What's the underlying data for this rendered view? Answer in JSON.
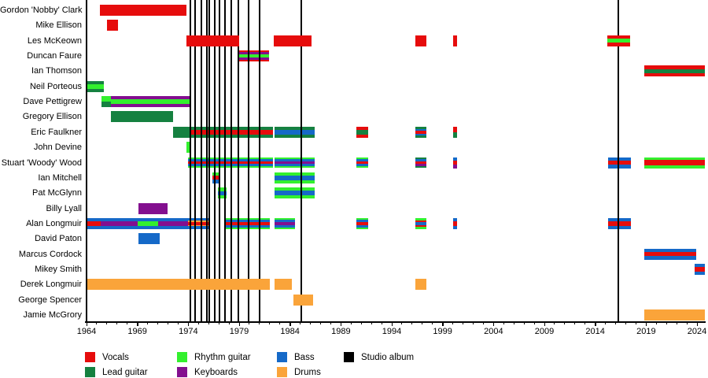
{
  "chart_data": {
    "type": "timeline",
    "title": "",
    "x_axis": {
      "start_year": 1964,
      "end_year": 2024,
      "major_tick_interval": 5,
      "minor_tick_interval": 1,
      "tick_labels": [
        "1964",
        "1969",
        "1974",
        "1979",
        "1984",
        "1989",
        "1994",
        "1999",
        "2004",
        "2009",
        "2014",
        "2019",
        "2024"
      ]
    },
    "colors": {
      "vocals": "#e60c0c",
      "lead": "#158140",
      "rhythm": "#33f02e",
      "keyboards": "#830f8f",
      "bass": "#1569c8",
      "drums": "#faa43a",
      "album": "#000000"
    },
    "album_line_years": [
      1974.2,
      1974.7,
      1975.3,
      1975.8,
      1976.1,
      1976.6,
      1977.1,
      1977.6,
      1978.2,
      1978.9,
      1979.9,
      1981.0,
      1985.1,
      2016.3
    ],
    "members": [
      {
        "name": "Gordon 'Nobby' Clark",
        "z": "front",
        "periods": [
          {
            "start": 1965.3,
            "end": 1973.8,
            "stripes": [
              "vocals"
            ]
          }
        ]
      },
      {
        "name": "Mike Ellison",
        "z": "front",
        "periods": [
          {
            "start": 1966.0,
            "end": 1967.1,
            "stripes": [
              "vocals"
            ]
          }
        ]
      },
      {
        "name": "Les McKeown",
        "z": "front",
        "periods": [
          {
            "start": 1973.8,
            "end": 1979.0,
            "stripes": [
              "vocals"
            ]
          },
          {
            "start": 1982.4,
            "end": 1986.1,
            "stripes": [
              "vocals"
            ]
          },
          {
            "start": 1996.3,
            "end": 1997.4,
            "stripes": [
              "vocals"
            ]
          },
          {
            "start": 2000.0,
            "end": 2000.4,
            "stripes": [
              "vocals"
            ]
          },
          {
            "start": 2015.2,
            "end": 2017.4,
            "stripes": [
              "vocals:1.2",
              "rhythm:1.4",
              "vocals:1.2"
            ]
          }
        ]
      },
      {
        "name": "Duncan Faure",
        "z": "back",
        "periods": [
          {
            "start": 1978.9,
            "end": 1981.9,
            "stripes": [
              "vocals:0.8",
              "keyboards:1",
              "rhythm:1.6",
              "keyboards:1",
              "vocals:0.8"
            ]
          }
        ]
      },
      {
        "name": "Ian Thomson",
        "z": "front",
        "periods": [
          {
            "start": 2018.8,
            "end": 2024.8,
            "stripes": [
              "vocals:1.2",
              "lead:1.6",
              "vocals:1.2"
            ]
          }
        ]
      },
      {
        "name": "Neil Porteous",
        "z": "front",
        "periods": [
          {
            "start": 1964.0,
            "end": 1965.7,
            "stripes": [
              "lead:1",
              "rhythm:1.6",
              "lead:1"
            ]
          }
        ]
      },
      {
        "name": "Dave Pettigrew",
        "z": "back",
        "periods": [
          {
            "start": 1965.5,
            "end": 1966.4,
            "stripes": [
              "rhythm:1",
              "lead:1"
            ]
          },
          {
            "start": 1966.4,
            "end": 1974.3,
            "stripes": [
              "keyboards:1",
              "rhythm:1.4",
              "keyboards:1"
            ]
          }
        ]
      },
      {
        "name": "Gregory Ellison",
        "z": "front",
        "periods": [
          {
            "start": 1966.4,
            "end": 1972.5,
            "stripes": [
              "lead"
            ]
          }
        ]
      },
      {
        "name": "Eric Faulkner",
        "z": "back",
        "periods": [
          {
            "start": 1972.5,
            "end": 1974.2,
            "stripes": [
              "lead"
            ]
          },
          {
            "start": 1974.2,
            "end": 1982.3,
            "stripes": [
              "lead:1",
              "vocals:1.3",
              "lead:1"
            ]
          },
          {
            "start": 1982.5,
            "end": 1986.4,
            "stripes": [
              "lead:1",
              "bass:1.3",
              "lead:1"
            ]
          },
          {
            "start": 1990.5,
            "end": 1991.7,
            "stripes": [
              "vocals:1",
              "lead:1.3",
              "vocals:1"
            ]
          },
          {
            "start": 1996.3,
            "end": 1997.4,
            "stripes": [
              "lead:1",
              "bass:0.8",
              "vocals:1.3",
              "bass:0.8",
              "lead:1"
            ]
          },
          {
            "start": 2000.0,
            "end": 2000.4,
            "stripes": [
              "vocals:1",
              "lead:1"
            ]
          }
        ]
      },
      {
        "name": "John Devine",
        "z": "back",
        "periods": [
          {
            "start": 1973.8,
            "end": 1974.3,
            "stripes": [
              "rhythm"
            ]
          }
        ]
      },
      {
        "name": "Stuart 'Woody' Wood",
        "z": "back",
        "periods": [
          {
            "start": 1974.0,
            "end": 1982.3,
            "stripes": [
              "rhythm:0.8",
              "bass:1",
              "vocals:1.4",
              "bass:1",
              "rhythm:0.8"
            ]
          },
          {
            "start": 1982.5,
            "end": 1986.4,
            "stripes": [
              "rhythm:0.8",
              "bass:1",
              "keyboards:1.4",
              "bass:1",
              "rhythm:0.8"
            ]
          },
          {
            "start": 1990.5,
            "end": 1991.7,
            "stripes": [
              "rhythm:0.8",
              "bass:1",
              "vocals:1.4",
              "bass:1",
              "rhythm:0.8"
            ]
          },
          {
            "start": 1996.3,
            "end": 1997.4,
            "stripes": [
              "lead:1",
              "bass:1",
              "vocals:1.2",
              "keyboards:1",
              "lead:1"
            ]
          },
          {
            "start": 2000.0,
            "end": 2000.4,
            "stripes": [
              "bass:1",
              "vocals:1",
              "keyboards:1"
            ]
          },
          {
            "start": 2015.3,
            "end": 2017.5,
            "stripes": [
              "bass:1",
              "vocals:1.4",
              "bass:1"
            ]
          },
          {
            "start": 2018.8,
            "end": 2024.8,
            "stripes": [
              "rhythm:1",
              "vocals:1.6",
              "rhythm:1"
            ]
          }
        ]
      },
      {
        "name": "Ian Mitchell",
        "z": "back",
        "periods": [
          {
            "start": 1976.4,
            "end": 1977.0,
            "stripes": [
              "rhythm:1",
              "vocals:1.2",
              "bass:1.2"
            ]
          },
          {
            "start": 1982.5,
            "end": 1986.4,
            "stripes": [
              "rhythm:1",
              "bass:1.4",
              "rhythm:1"
            ]
          }
        ]
      },
      {
        "name": "Pat McGlynn",
        "z": "back",
        "periods": [
          {
            "start": 1976.9,
            "end": 1977.8,
            "stripes": [
              "rhythm:1",
              "bass:1.2",
              "rhythm:1"
            ]
          },
          {
            "start": 1982.5,
            "end": 1986.4,
            "stripes": [
              "rhythm:1",
              "bass:1.4",
              "rhythm:1"
            ]
          }
        ]
      },
      {
        "name": "Billy Lyall",
        "z": "front",
        "periods": [
          {
            "start": 1969.1,
            "end": 1972.0,
            "stripes": [
              "keyboards"
            ]
          }
        ]
      },
      {
        "name": "Alan Longmuir",
        "z": "back",
        "periods": [
          {
            "start": 1964.0,
            "end": 1965.4,
            "stripes": [
              "bass:1",
              "vocals:1.4",
              "bass:1"
            ]
          },
          {
            "start": 1965.4,
            "end": 1969.0,
            "stripes": [
              "bass:1",
              "keyboards:1.4",
              "bass:1"
            ]
          },
          {
            "start": 1969.0,
            "end": 1971.0,
            "stripes": [
              "bass:1",
              "rhythm:1.4",
              "bass:1"
            ]
          },
          {
            "start": 1971.0,
            "end": 1974.0,
            "stripes": [
              "bass:1",
              "keyboards:1.4",
              "bass:1"
            ]
          },
          {
            "start": 1974.0,
            "end": 1976.1,
            "stripes": [
              "bass:1.2",
              "drums:0.4",
              "vocals:1.6",
              "drums:0.4",
              "bass:1.2"
            ]
          },
          {
            "start": 1977.5,
            "end": 1982.0,
            "stripes": [
              "rhythm:0.8",
              "bass:1",
              "vocals:1.4",
              "bass:1",
              "rhythm:0.8"
            ]
          },
          {
            "start": 1982.5,
            "end": 1984.5,
            "stripes": [
              "rhythm:0.8",
              "bass:1",
              "keyboards:1.4",
              "bass:1",
              "rhythm:0.8"
            ]
          },
          {
            "start": 1990.5,
            "end": 1991.7,
            "stripes": [
              "rhythm:0.8",
              "bass:1",
              "vocals:1.4",
              "bass:1",
              "rhythm:0.8"
            ]
          },
          {
            "start": 1996.3,
            "end": 1997.4,
            "stripes": [
              "rhythm:1",
              "vocals:1",
              "bass:1.2",
              "vocals:1",
              "rhythm:1"
            ]
          },
          {
            "start": 2000.0,
            "end": 2000.4,
            "stripes": [
              "bass:1",
              "vocals:1.4",
              "bass:1"
            ]
          },
          {
            "start": 2015.3,
            "end": 2017.5,
            "stripes": [
              "bass:1",
              "vocals:1.4",
              "bass:1"
            ]
          }
        ]
      },
      {
        "name": "David Paton",
        "z": "front",
        "periods": [
          {
            "start": 1969.1,
            "end": 1971.2,
            "stripes": [
              "bass"
            ]
          }
        ]
      },
      {
        "name": "Marcus Cordock",
        "z": "front",
        "periods": [
          {
            "start": 2018.8,
            "end": 2023.9,
            "stripes": [
              "bass:1",
              "vocals:1.4",
              "bass:1"
            ]
          }
        ]
      },
      {
        "name": "Mikey Smith",
        "z": "front",
        "periods": [
          {
            "start": 2023.8,
            "end": 2024.8,
            "stripes": [
              "bass:1",
              "vocals:1.4",
              "bass:1"
            ]
          }
        ]
      },
      {
        "name": "Derek Longmuir",
        "z": "front",
        "periods": [
          {
            "start": 1964.0,
            "end": 1982.0,
            "stripes": [
              "drums"
            ]
          },
          {
            "start": 1982.5,
            "end": 1984.2,
            "stripes": [
              "drums"
            ]
          },
          {
            "start": 1996.3,
            "end": 1997.4,
            "stripes": [
              "drums"
            ]
          }
        ]
      },
      {
        "name": "George Spencer",
        "z": "front",
        "periods": [
          {
            "start": 1984.3,
            "end": 1986.3,
            "stripes": [
              "drums"
            ]
          }
        ]
      },
      {
        "name": "Jamie McGrory",
        "z": "front",
        "periods": [
          {
            "start": 2018.8,
            "end": 2024.8,
            "stripes": [
              "drums"
            ]
          }
        ]
      }
    ],
    "legend": {
      "items": [
        {
          "label": "Vocals",
          "color": "vocals",
          "col": 0,
          "row": 0
        },
        {
          "label": "Lead guitar",
          "color": "lead",
          "col": 0,
          "row": 1
        },
        {
          "label": "Rhythm guitar",
          "color": "rhythm",
          "col": 1,
          "row": 0
        },
        {
          "label": "Keyboards",
          "color": "keyboards",
          "col": 1,
          "row": 1
        },
        {
          "label": "Bass",
          "color": "bass",
          "col": 2,
          "row": 0
        },
        {
          "label": "Drums",
          "color": "drums",
          "col": 2,
          "row": 1
        },
        {
          "label": "Studio album",
          "color": "album",
          "col": 3,
          "row": 0
        }
      ]
    }
  }
}
